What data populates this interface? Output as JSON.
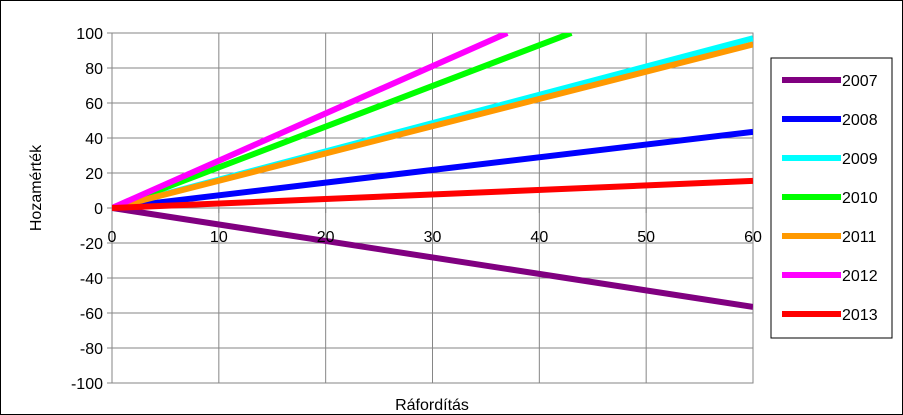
{
  "chart_data": {
    "type": "line",
    "title": "",
    "xlabel": "Ráfordítás",
    "ylabel": "Hozamérték",
    "xlim": [
      0,
      60
    ],
    "ylim": [
      -100,
      100
    ],
    "x_ticks": [
      0,
      10,
      20,
      30,
      40,
      50,
      60
    ],
    "y_ticks": [
      100,
      80,
      60,
      40,
      20,
      0,
      -20,
      -40,
      -60,
      -80,
      -100
    ],
    "grid": true,
    "legend_position": "right",
    "series": [
      {
        "name": "2007",
        "color": "#800080",
        "x": [
          0,
          60
        ],
        "y": [
          0,
          -56.5
        ]
      },
      {
        "name": "2008",
        "color": "#0000ff",
        "x": [
          0,
          60
        ],
        "y": [
          0,
          43.5
        ]
      },
      {
        "name": "2009",
        "color": "#00ffff",
        "x": [
          0,
          60
        ],
        "y": [
          0,
          97
        ]
      },
      {
        "name": "2010",
        "color": "#00ff00",
        "x": [
          0,
          43
        ],
        "y": [
          0,
          100
        ]
      },
      {
        "name": "2011",
        "color": "#ff9900",
        "x": [
          0,
          60
        ],
        "y": [
          0,
          93.5
        ]
      },
      {
        "name": "2012",
        "color": "#ff00ff",
        "x": [
          0,
          37
        ],
        "y": [
          0,
          100
        ]
      },
      {
        "name": "2013",
        "color": "#ff0000",
        "x": [
          0,
          60
        ],
        "y": [
          0,
          15.5
        ]
      }
    ]
  }
}
